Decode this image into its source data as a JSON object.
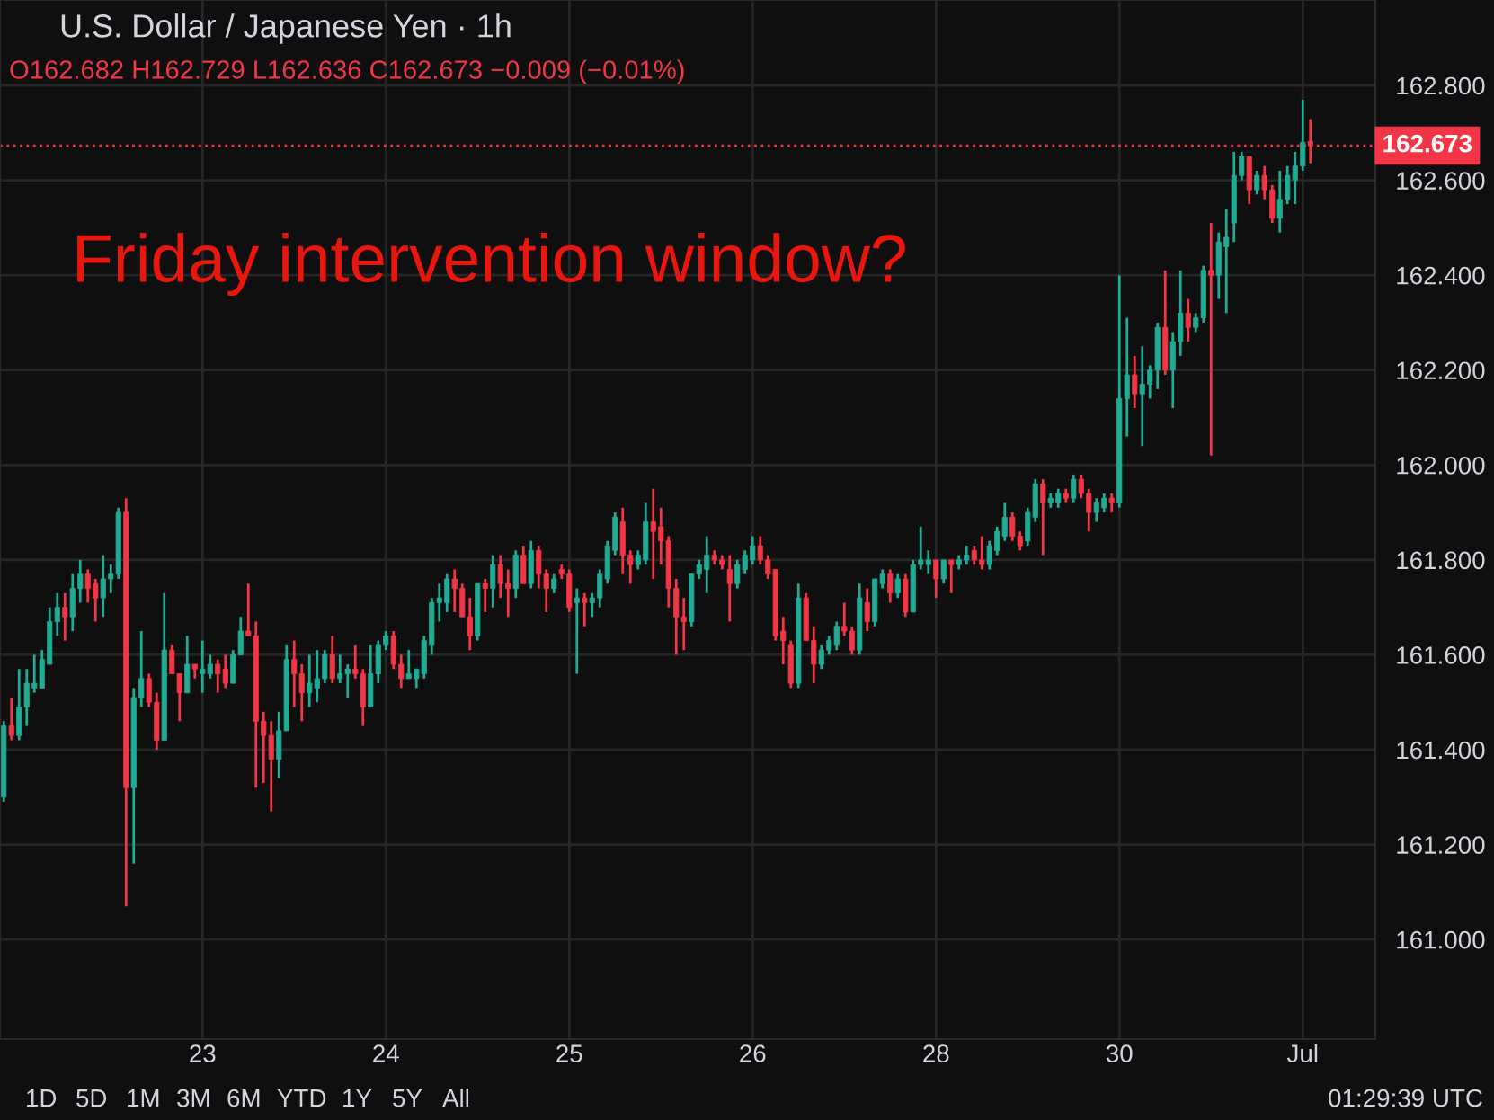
{
  "chart_data": {
    "type": "candlestick",
    "title": "U.S. Dollar / Japanese Yen · 1h",
    "subtitle": "O162.682 H162.729 L162.636 C162.673 −0.009 (−0.01%)",
    "annotations": [
      "Friday intervention window?",
      "1D",
      "5D",
      "1M",
      "3M",
      "6M",
      "YTD",
      "1Y",
      "5Y",
      "All",
      "01:29:39 UTC"
    ],
    "categories": [
      null,
      null,
      null,
      null,
      null,
      null,
      null,
      null,
      null,
      null,
      null,
      null,
      null,
      null,
      null,
      null,
      null,
      null,
      null,
      null,
      null,
      null,
      null,
      null,
      null,
      null,
      "23",
      null,
      null,
      null,
      null,
      null,
      null,
      null,
      null,
      null,
      null,
      null,
      null,
      null,
      null,
      null,
      null,
      null,
      null,
      null,
      null,
      null,
      null,
      null,
      "24",
      null,
      null,
      null,
      null,
      null,
      null,
      null,
      null,
      null,
      null,
      null,
      null,
      null,
      null,
      null,
      null,
      null,
      null,
      null,
      null,
      null,
      null,
      null,
      "25",
      null,
      null,
      null,
      null,
      null,
      null,
      null,
      null,
      null,
      null,
      null,
      null,
      null,
      null,
      null,
      null,
      null,
      null,
      null,
      null,
      null,
      null,
      null,
      "26",
      null,
      null,
      null,
      null,
      null,
      null,
      null,
      null,
      null,
      null,
      null,
      null,
      null,
      null,
      null,
      null,
      null,
      null,
      null,
      null,
      null,
      null,
      null,
      "28",
      null,
      null,
      null,
      null,
      null,
      null,
      null,
      null,
      null,
      null,
      null,
      null,
      null,
      null,
      null,
      null,
      null,
      null,
      null,
      null,
      null,
      null,
      null,
      "30",
      null,
      null,
      null,
      null,
      null,
      null,
      null,
      null,
      null,
      null,
      null,
      null,
      null,
      null,
      null,
      null,
      null,
      null,
      null,
      null,
      null,
      null,
      null,
      "Jul",
      null
    ],
    "ohlc": [
      [
        161.3,
        161.46,
        161.29,
        161.45
      ],
      [
        161.45,
        161.51,
        161.42,
        161.43
      ],
      [
        161.43,
        161.57,
        161.42,
        161.49
      ],
      [
        161.49,
        161.57,
        161.45,
        161.54
      ],
      [
        161.53,
        161.6,
        161.52,
        161.54
      ],
      [
        161.53,
        161.61,
        161.53,
        161.59
      ],
      [
        161.58,
        161.7,
        161.58,
        161.67
      ],
      [
        161.67,
        161.73,
        161.64,
        161.7
      ],
      [
        161.7,
        161.73,
        161.63,
        161.68
      ],
      [
        161.68,
        161.77,
        161.65,
        161.74
      ],
      [
        161.74,
        161.8,
        161.71,
        161.77
      ],
      [
        161.77,
        161.78,
        161.71,
        161.74
      ],
      [
        161.75,
        161.76,
        161.67,
        161.72
      ],
      [
        161.72,
        161.81,
        161.68,
        161.76
      ],
      [
        161.76,
        161.79,
        161.73,
        161.77
      ],
      [
        161.77,
        161.91,
        161.76,
        161.9
      ],
      [
        161.9,
        161.93,
        161.07,
        161.32
      ],
      [
        161.32,
        161.53,
        161.16,
        161.51
      ],
      [
        161.51,
        161.65,
        161.49,
        161.55
      ],
      [
        161.55,
        161.56,
        161.49,
        161.5
      ],
      [
        161.5,
        161.52,
        161.4,
        161.42
      ],
      [
        161.42,
        161.73,
        161.42,
        161.61
      ],
      [
        161.61,
        161.62,
        161.56,
        161.56
      ],
      [
        161.56,
        161.56,
        161.46,
        161.52
      ],
      [
        161.52,
        161.64,
        161.52,
        161.58
      ],
      [
        161.58,
        161.58,
        161.55,
        161.57
      ],
      [
        161.56,
        161.63,
        161.52,
        161.57
      ],
      [
        161.56,
        161.6,
        161.55,
        161.58
      ],
      [
        161.58,
        161.59,
        161.52,
        161.56
      ],
      [
        161.57,
        161.6,
        161.53,
        161.54
      ],
      [
        161.54,
        161.61,
        161.54,
        161.6
      ],
      [
        161.6,
        161.68,
        161.6,
        161.65
      ],
      [
        161.65,
        161.75,
        161.64,
        161.64
      ],
      [
        161.64,
        161.67,
        161.32,
        161.46
      ],
      [
        161.46,
        161.48,
        161.33,
        161.43
      ],
      [
        161.43,
        161.46,
        161.27,
        161.38
      ],
      [
        161.38,
        161.48,
        161.34,
        161.44
      ],
      [
        161.44,
        161.62,
        161.44,
        161.59
      ],
      [
        161.59,
        161.63,
        161.49,
        161.56
      ],
      [
        161.56,
        161.58,
        161.46,
        161.52
      ],
      [
        161.52,
        161.6,
        161.49,
        161.54
      ],
      [
        161.53,
        161.61,
        161.5,
        161.55
      ],
      [
        161.55,
        161.61,
        161.54,
        161.6
      ],
      [
        161.6,
        161.64,
        161.54,
        161.55
      ],
      [
        161.55,
        161.6,
        161.54,
        161.56
      ],
      [
        161.56,
        161.58,
        161.51,
        161.57
      ],
      [
        161.57,
        161.62,
        161.55,
        161.56
      ],
      [
        161.56,
        161.57,
        161.45,
        161.49
      ],
      [
        161.49,
        161.62,
        161.49,
        161.56
      ],
      [
        161.56,
        161.63,
        161.54,
        161.62
      ],
      [
        161.62,
        161.65,
        161.61,
        161.64
      ],
      [
        161.64,
        161.65,
        161.57,
        161.58
      ],
      [
        161.58,
        161.6,
        161.53,
        161.55
      ],
      [
        161.55,
        161.61,
        161.55,
        161.56
      ],
      [
        161.55,
        161.57,
        161.53,
        161.57
      ],
      [
        161.56,
        161.64,
        161.55,
        161.63
      ],
      [
        161.62,
        161.72,
        161.6,
        161.71
      ],
      [
        161.71,
        161.75,
        161.67,
        161.72
      ],
      [
        161.71,
        161.77,
        161.69,
        161.76
      ],
      [
        161.76,
        161.78,
        161.69,
        161.74
      ],
      [
        161.74,
        161.75,
        161.68,
        161.68
      ],
      [
        161.68,
        161.72,
        161.61,
        161.64
      ],
      [
        161.64,
        161.75,
        161.63,
        161.75
      ],
      [
        161.75,
        161.76,
        161.69,
        161.74
      ],
      [
        161.74,
        161.81,
        161.7,
        161.79
      ],
      [
        161.79,
        161.81,
        161.72,
        161.75
      ],
      [
        161.75,
        161.78,
        161.68,
        161.74
      ],
      [
        161.74,
        161.82,
        161.72,
        161.81
      ],
      [
        161.81,
        161.83,
        161.75,
        161.75
      ],
      [
        161.75,
        161.84,
        161.74,
        161.82
      ],
      [
        161.82,
        161.83,
        161.74,
        161.77
      ],
      [
        161.77,
        161.78,
        161.69,
        161.74
      ],
      [
        161.74,
        161.77,
        161.73,
        161.76
      ],
      [
        161.78,
        161.79,
        161.76,
        161.77
      ],
      [
        161.77,
        161.78,
        161.69,
        161.7
      ],
      [
        161.71,
        161.74,
        161.56,
        161.72
      ],
      [
        161.72,
        161.73,
        161.66,
        161.71
      ],
      [
        161.71,
        161.73,
        161.68,
        161.72
      ],
      [
        161.72,
        161.78,
        161.7,
        161.77
      ],
      [
        161.76,
        161.84,
        161.75,
        161.83
      ],
      [
        161.82,
        161.9,
        161.81,
        161.89
      ],
      [
        161.88,
        161.91,
        161.77,
        161.81
      ],
      [
        161.81,
        161.82,
        161.75,
        161.79
      ],
      [
        161.79,
        161.82,
        161.78,
        161.81
      ],
      [
        161.8,
        161.92,
        161.79,
        161.88
      ],
      [
        161.88,
        161.95,
        161.76,
        161.86
      ],
      [
        161.87,
        161.91,
        161.79,
        161.84
      ],
      [
        161.84,
        161.85,
        161.7,
        161.74
      ],
      [
        161.74,
        161.76,
        161.6,
        161.68
      ],
      [
        161.68,
        161.72,
        161.61,
        161.67
      ],
      [
        161.67,
        161.77,
        161.66,
        161.77
      ],
      [
        161.77,
        161.8,
        161.76,
        161.79
      ],
      [
        161.78,
        161.85,
        161.73,
        161.81
      ],
      [
        161.81,
        161.82,
        161.79,
        161.8
      ],
      [
        161.8,
        161.81,
        161.78,
        161.79
      ],
      [
        161.78,
        161.81,
        161.67,
        161.75
      ],
      [
        161.75,
        161.8,
        161.74,
        161.79
      ],
      [
        161.78,
        161.82,
        161.77,
        161.81
      ],
      [
        161.8,
        161.85,
        161.79,
        161.83
      ],
      [
        161.83,
        161.85,
        161.79,
        161.8
      ],
      [
        161.8,
        161.81,
        161.76,
        161.77
      ],
      [
        161.78,
        161.78,
        161.63,
        161.64
      ],
      [
        161.65,
        161.68,
        161.58,
        161.63
      ],
      [
        161.62,
        161.63,
        161.53,
        161.54
      ],
      [
        161.54,
        161.75,
        161.53,
        161.72
      ],
      [
        161.72,
        161.73,
        161.63,
        161.63
      ],
      [
        161.63,
        161.66,
        161.54,
        161.58
      ],
      [
        161.58,
        161.62,
        161.57,
        161.61
      ],
      [
        161.61,
        161.64,
        161.6,
        161.63
      ],
      [
        161.62,
        161.67,
        161.61,
        161.66
      ],
      [
        161.66,
        161.71,
        161.64,
        161.65
      ],
      [
        161.65,
        161.66,
        161.6,
        161.61
      ],
      [
        161.61,
        161.75,
        161.6,
        161.72
      ],
      [
        161.71,
        161.74,
        161.65,
        161.67
      ],
      [
        161.67,
        161.76,
        161.66,
        161.76
      ],
      [
        161.75,
        161.78,
        161.74,
        161.77
      ],
      [
        161.77,
        161.78,
        161.71,
        161.73
      ],
      [
        161.73,
        161.77,
        161.72,
        161.76
      ],
      [
        161.76,
        161.77,
        161.68,
        161.69
      ],
      [
        161.69,
        161.8,
        161.69,
        161.79
      ],
      [
        161.79,
        161.87,
        161.78,
        161.8
      ],
      [
        161.79,
        161.82,
        161.77,
        161.8
      ],
      [
        161.8,
        161.8,
        161.72,
        161.76
      ],
      [
        161.76,
        161.8,
        161.75,
        161.8
      ],
      [
        161.8,
        161.8,
        161.73,
        161.79
      ],
      [
        161.79,
        161.81,
        161.78,
        161.8
      ],
      [
        161.8,
        161.83,
        161.79,
        161.81
      ],
      [
        161.82,
        161.83,
        161.79,
        161.8
      ],
      [
        161.8,
        161.85,
        161.78,
        161.79
      ],
      [
        161.79,
        161.84,
        161.78,
        161.83
      ],
      [
        161.82,
        161.87,
        161.81,
        161.86
      ],
      [
        161.85,
        161.92,
        161.84,
        161.89
      ],
      [
        161.89,
        161.9,
        161.84,
        161.85
      ],
      [
        161.85,
        161.86,
        161.82,
        161.83
      ],
      [
        161.84,
        161.91,
        161.83,
        161.9
      ],
      [
        161.89,
        161.97,
        161.88,
        161.96
      ],
      [
        161.96,
        161.97,
        161.81,
        161.92
      ],
      [
        161.92,
        161.94,
        161.91,
        161.93
      ],
      [
        161.92,
        161.95,
        161.91,
        161.94
      ],
      [
        161.94,
        161.95,
        161.92,
        161.93
      ],
      [
        161.93,
        161.98,
        161.92,
        161.97
      ],
      [
        161.97,
        161.98,
        161.93,
        161.94
      ],
      [
        161.94,
        161.95,
        161.86,
        161.9
      ],
      [
        161.9,
        161.93,
        161.88,
        161.92
      ],
      [
        161.91,
        161.94,
        161.9,
        161.93
      ],
      [
        161.93,
        161.94,
        161.9,
        161.92
      ],
      [
        161.92,
        162.4,
        161.91,
        162.14
      ],
      [
        162.14,
        162.31,
        162.06,
        162.19
      ],
      [
        162.19,
        162.23,
        162.12,
        162.15
      ],
      [
        162.15,
        162.25,
        162.04,
        162.17
      ],
      [
        162.17,
        162.21,
        162.14,
        162.2
      ],
      [
        162.2,
        162.3,
        162.16,
        162.29
      ],
      [
        162.29,
        162.41,
        162.19,
        162.2
      ],
      [
        162.2,
        162.28,
        162.12,
        162.26
      ],
      [
        162.26,
        162.41,
        162.23,
        162.32
      ],
      [
        162.32,
        162.35,
        162.26,
        162.29
      ],
      [
        162.29,
        162.32,
        162.28,
        162.31
      ],
      [
        162.31,
        162.42,
        162.3,
        162.41
      ],
      [
        162.41,
        162.51,
        162.02,
        162.4
      ],
      [
        162.4,
        162.49,
        162.35,
        162.47
      ],
      [
        162.46,
        162.54,
        162.32,
        162.48
      ],
      [
        162.51,
        162.66,
        162.47,
        162.61
      ],
      [
        162.61,
        162.66,
        162.6,
        162.65
      ],
      [
        162.65,
        162.65,
        162.55,
        162.58
      ],
      [
        162.58,
        162.62,
        162.57,
        162.61
      ],
      [
        162.61,
        162.63,
        162.56,
        162.58
      ],
      [
        162.58,
        162.59,
        162.51,
        162.52
      ],
      [
        162.52,
        162.62,
        162.49,
        162.56
      ],
      [
        162.56,
        162.63,
        162.55,
        162.61
      ],
      [
        162.6,
        162.66,
        162.55,
        162.63
      ],
      [
        162.63,
        162.77,
        162.62,
        162.68
      ],
      [
        162.682,
        162.729,
        162.636,
        162.673
      ]
    ],
    "ylim": [
      160.79,
      162.98
    ],
    "yticks": [
      {
        "value": 161.0,
        "label": "161.000"
      },
      {
        "value": 161.2,
        "label": "161.200"
      },
      {
        "value": 161.4,
        "label": "161.400"
      },
      {
        "value": 161.6,
        "label": "161.600"
      },
      {
        "value": 161.8,
        "label": "161.800"
      },
      {
        "value": 162.0,
        "label": "162.000"
      },
      {
        "value": 162.2,
        "label": "162.200"
      },
      {
        "value": 162.4,
        "label": "162.400"
      },
      {
        "value": 162.6,
        "label": "162.600"
      },
      {
        "value": 162.8,
        "label": "162.800"
      }
    ],
    "ref_lines": [
      {
        "axis": "y",
        "value": 162.673,
        "label": "162.673",
        "color": "#f23645",
        "line_style": "dotted"
      }
    ],
    "grid": true,
    "legend": false
  }
}
